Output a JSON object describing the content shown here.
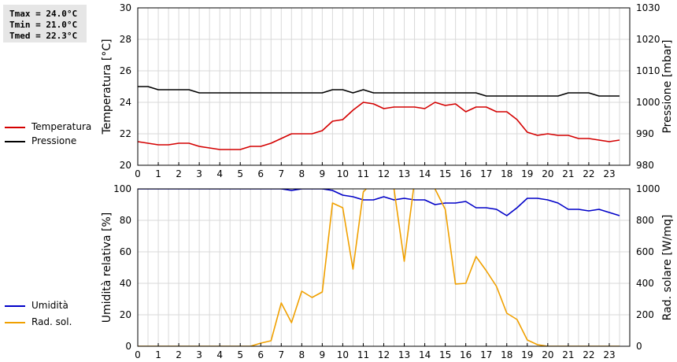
{
  "stats": {
    "tmax": "Tmax = 24.0°C",
    "tmin": "Tmin = 21.0°C",
    "tmed": "Tmed = 22.3°C"
  },
  "chart_data": [
    {
      "type": "line",
      "ylabel_left": "Temperatura [°C]",
      "ylabel_right": "Pressione [mbar]",
      "xlim": [
        0,
        24
      ],
      "ylim_left": [
        20,
        30
      ],
      "ylim_right": [
        980,
        1030
      ],
      "x_ticks": [
        0,
        1,
        2,
        3,
        4,
        5,
        6,
        7,
        8,
        9,
        10,
        11,
        12,
        13,
        14,
        15,
        16,
        17,
        18,
        19,
        20,
        21,
        22,
        23
      ],
      "y_ticks_left": [
        20,
        22,
        24,
        26,
        28,
        30
      ],
      "y_ticks_right": [
        980,
        990,
        1000,
        1010,
        1020,
        1030
      ],
      "grid": true,
      "series": [
        {
          "name": "Temperatura",
          "color": "#d40000",
          "axis": "left",
          "x": [
            0,
            0.5,
            1,
            1.5,
            2,
            2.5,
            3,
            3.5,
            4,
            4.5,
            5,
            5.5,
            6,
            6.5,
            7,
            7.5,
            8,
            8.5,
            9,
            9.5,
            10,
            10.5,
            11,
            11.5,
            12,
            12.5,
            13,
            13.5,
            14,
            14.5,
            15,
            15.5,
            16,
            16.5,
            17,
            17.5,
            18,
            18.5,
            19,
            19.5,
            20,
            20.5,
            21,
            21.5,
            22,
            22.5,
            23,
            23.5
          ],
          "y": [
            21.5,
            21.4,
            21.3,
            21.3,
            21.4,
            21.4,
            21.2,
            21.1,
            21.0,
            21.0,
            21.0,
            21.2,
            21.2,
            21.4,
            21.7,
            22.0,
            22.0,
            22.0,
            22.2,
            22.8,
            22.9,
            23.5,
            24.0,
            23.9,
            23.6,
            23.7,
            23.7,
            23.7,
            23.6,
            24.0,
            23.8,
            23.9,
            23.4,
            23.7,
            23.7,
            23.4,
            23.4,
            22.9,
            22.1,
            21.9,
            22.0,
            21.9,
            21.9,
            21.7,
            21.7,
            21.6,
            21.5,
            21.6
          ]
        },
        {
          "name": "Pressione",
          "color": "#000000",
          "axis": "right",
          "x": [
            0,
            0.5,
            1,
            1.5,
            2,
            2.5,
            3,
            3.5,
            4,
            4.5,
            5,
            5.5,
            6,
            6.5,
            7,
            7.5,
            8,
            8.5,
            9,
            9.5,
            10,
            10.5,
            11,
            11.5,
            12,
            12.5,
            13,
            13.5,
            14,
            14.5,
            15,
            15.5,
            16,
            16.5,
            17,
            17.5,
            18,
            18.5,
            19,
            19.5,
            20,
            20.5,
            21,
            21.5,
            22,
            22.5,
            23,
            23.5
          ],
          "y": [
            1005,
            1005,
            1004,
            1004,
            1004,
            1004,
            1003,
            1003,
            1003,
            1003,
            1003,
            1003,
            1003,
            1003,
            1003,
            1003,
            1003,
            1003,
            1003,
            1004,
            1004,
            1003,
            1004,
            1003,
            1003,
            1003,
            1003,
            1003,
            1003,
            1003,
            1003,
            1003,
            1003,
            1003,
            1002,
            1002,
            1002,
            1002,
            1002,
            1002,
            1002,
            1002,
            1003,
            1003,
            1003,
            1002,
            1002,
            1002
          ]
        }
      ]
    },
    {
      "type": "line",
      "ylabel_left": "Umidità relativa [%]",
      "ylabel_right": "Rad. solare [W/mq]",
      "xlim": [
        0,
        24
      ],
      "ylim_left": [
        0,
        100
      ],
      "ylim_right": [
        0,
        1000
      ],
      "x_ticks": [
        0,
        1,
        2,
        3,
        4,
        5,
        6,
        7,
        8,
        9,
        10,
        11,
        12,
        13,
        14,
        15,
        16,
        17,
        18,
        19,
        20,
        21,
        22,
        23
      ],
      "y_ticks_left": [
        0,
        20,
        40,
        60,
        80,
        100
      ],
      "y_ticks_right": [
        0,
        200,
        400,
        600,
        800,
        1000
      ],
      "grid": true,
      "series": [
        {
          "name": "Umidità",
          "color": "#0000c8",
          "axis": "left",
          "x": [
            0,
            0.5,
            1,
            1.5,
            2,
            2.5,
            3,
            3.5,
            4,
            4.5,
            5,
            5.5,
            6,
            6.5,
            7,
            7.5,
            8,
            8.5,
            9,
            9.5,
            10,
            10.5,
            11,
            11.5,
            12,
            12.5,
            13,
            13.5,
            14,
            14.5,
            15,
            15.5,
            16,
            16.5,
            17,
            17.5,
            18,
            18.5,
            19,
            19.5,
            20,
            20.5,
            21,
            21.5,
            22,
            22.5,
            23,
            23.5
          ],
          "y": [
            100,
            100,
            100,
            100,
            100,
            100,
            100,
            100,
            100,
            100,
            100,
            100,
            100,
            100,
            100,
            99,
            100,
            100,
            100,
            99,
            96,
            95,
            93,
            93,
            95,
            93,
            94,
            93,
            93,
            90,
            91,
            91,
            92,
            88,
            88,
            87,
            83,
            88,
            94,
            94,
            93,
            91,
            87,
            87,
            86,
            87,
            85,
            83
          ]
        },
        {
          "name": "Rad. sol.",
          "color": "#f0a000",
          "axis": "right",
          "x": [
            0,
            0.5,
            1,
            1.5,
            2,
            2.5,
            3,
            3.5,
            4,
            4.5,
            5,
            5.5,
            6,
            6.5,
            7,
            7.5,
            8,
            8.5,
            9,
            9.5,
            10,
            10.5,
            11,
            11.5,
            12,
            12.5,
            13,
            13.5,
            14,
            14.5,
            15,
            15.5,
            16,
            16.5,
            17,
            17.5,
            18,
            18.5,
            19,
            19.5,
            20,
            20.5,
            21,
            21.5,
            22,
            22.5,
            23,
            23.5
          ],
          "y": [
            0,
            0,
            0,
            0,
            0,
            0,
            0,
            0,
            0,
            0,
            0,
            0,
            20,
            35,
            275,
            150,
            350,
            310,
            345,
            910,
            880,
            490,
            980,
            1050,
            1050,
            1000,
            540,
            1050,
            1050,
            1000,
            870,
            395,
            400,
            570,
            480,
            380,
            210,
            170,
            40,
            10,
            0,
            0,
            0,
            0,
            0,
            0,
            0,
            0
          ]
        }
      ]
    }
  ]
}
